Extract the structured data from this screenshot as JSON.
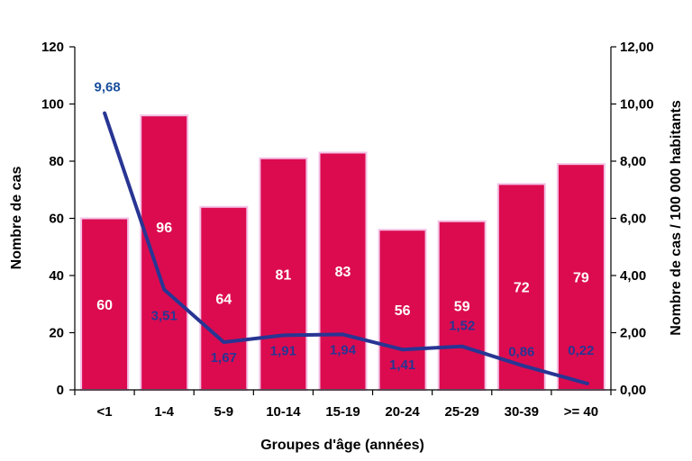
{
  "chart_data": {
    "type": "bar",
    "categories": [
      "<1",
      "1-4",
      "5-9",
      "10-14",
      "15-19",
      "20-24",
      "25-29",
      "30-39",
      ">= 40"
    ],
    "series": [
      {
        "kind": "bar",
        "axis": "left",
        "values": [
          60,
          96,
          64,
          81,
          83,
          56,
          59,
          72,
          79
        ],
        "labels": [
          "60",
          "96",
          "64",
          "81",
          "83",
          "56",
          "59",
          "72",
          "79"
        ],
        "color": "#dc0b4f"
      },
      {
        "kind": "line",
        "axis": "right",
        "values": [
          9.68,
          3.51,
          1.67,
          1.91,
          1.94,
          1.41,
          1.52,
          0.86,
          0.22
        ],
        "labels": [
          "9,68",
          "3,51",
          "1,67",
          "1,91",
          "1,94",
          "1,41",
          "1,52",
          "0,86",
          "0,22"
        ],
        "color": "#283593",
        "first_label_color": "#1a4f9c"
      }
    ],
    "xlabel": "Groupes d'âge (années)",
    "ylabel": "Nombre de cas",
    "y2label": "Nombre de cas / 100 000 habitants",
    "ylim": [
      0,
      120
    ],
    "y2lim": [
      0,
      12
    ],
    "yticks": [
      "0",
      "20",
      "40",
      "60",
      "80",
      "100",
      "120"
    ],
    "y2ticks": [
      "0,00",
      "2,00",
      "4,00",
      "6,00",
      "8,00",
      "10,00",
      "12,00"
    ],
    "grid": false,
    "legend": "none"
  }
}
